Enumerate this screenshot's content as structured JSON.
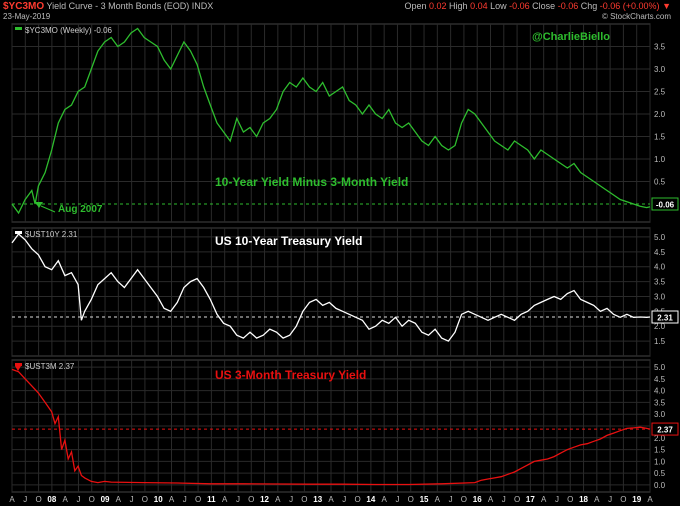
{
  "header": {
    "symbol": "$YC3MO",
    "description": "Yield Curve - 3 Month Bonds (EOD)",
    "exchange": "INDX",
    "date": "23-May-2019",
    "watermark": "© StockCharts.com",
    "quote": {
      "open_label": "Open",
      "open": "0.02",
      "high_label": "High",
      "high": "0.04",
      "low_label": "Low",
      "low": "-0.06",
      "close_label": "Close",
      "close": "-0.06",
      "chg_label": "Chg",
      "chg": "-0.06 (+0.00%)"
    }
  },
  "colors": {
    "green": "#2ebd2e",
    "white": "#ffffff",
    "red": "#e81010",
    "grid": "#2a2a2a",
    "axis": "#bbbbbb",
    "orange": "#f5a623"
  },
  "x_axis": {
    "labels": [
      "A",
      "J",
      "O",
      "08",
      "A",
      "J",
      "O",
      "09",
      "A",
      "J",
      "O",
      "10",
      "A",
      "J",
      "O",
      "11",
      "A",
      "J",
      "O",
      "12",
      "A",
      "J",
      "O",
      "13",
      "A",
      "J",
      "O",
      "14",
      "A",
      "J",
      "O",
      "15",
      "A",
      "J",
      "O",
      "16",
      "A",
      "J",
      "O",
      "17",
      "A",
      "J",
      "O",
      "18",
      "A",
      "J",
      "O",
      "19",
      "A"
    ],
    "year_labels": [
      "08",
      "09",
      "10",
      "11",
      "12",
      "13",
      "14",
      "15",
      "16",
      "17",
      "18",
      "19"
    ]
  },
  "chart_data": [
    {
      "type": "line",
      "legend": "$YC3MO (Weekly) -0.06",
      "annotation": "10-Year Yield Minus 3-Month Yield",
      "author": "@CharlieBiello",
      "event_label": "Aug 2007",
      "last_value": "-0.06",
      "ylim": [
        -0.4,
        4.0
      ],
      "yticks": [
        "0.5",
        "1.0",
        "1.5",
        "2.0",
        "2.5",
        "3.0",
        "3.5"
      ],
      "reference_line": 0,
      "x": [
        0,
        2,
        4,
        6,
        7,
        8,
        10,
        12,
        14,
        16,
        18,
        20,
        22,
        24,
        26,
        28,
        30,
        32,
        34,
        36,
        38,
        40,
        42,
        44,
        46,
        48,
        50,
        52,
        54,
        56,
        58,
        60,
        62,
        64,
        66,
        68,
        70,
        72,
        74,
        76,
        78,
        80,
        82,
        84,
        86,
        88,
        90,
        92,
        94,
        96,
        98,
        100,
        102,
        104,
        106,
        108,
        110,
        112,
        114,
        116,
        118,
        120,
        122,
        124,
        126,
        128,
        130,
        132,
        134,
        136,
        138,
        140,
        142,
        144,
        146,
        148,
        150,
        152,
        154,
        156,
        158,
        160,
        162,
        164,
        166,
        168,
        170,
        172,
        174,
        176,
        178,
        180,
        182,
        184,
        186,
        188,
        190,
        192,
        193
      ],
      "values": [
        0.0,
        -0.2,
        0.1,
        0.3,
        0.0,
        0.4,
        0.7,
        1.2,
        1.8,
        2.1,
        2.2,
        2.5,
        2.6,
        3.0,
        3.4,
        3.6,
        3.7,
        3.5,
        3.6,
        3.8,
        3.9,
        3.7,
        3.6,
        3.5,
        3.2,
        3.0,
        3.3,
        3.6,
        3.4,
        3.1,
        2.6,
        2.2,
        1.8,
        1.6,
        1.4,
        1.9,
        1.6,
        1.7,
        1.5,
        1.8,
        1.9,
        2.1,
        2.5,
        2.7,
        2.6,
        2.8,
        2.6,
        2.5,
        2.7,
        2.4,
        2.5,
        2.6,
        2.3,
        2.2,
        2.0,
        2.2,
        2.0,
        1.9,
        2.1,
        1.8,
        1.7,
        1.8,
        1.6,
        1.4,
        1.3,
        1.5,
        1.3,
        1.2,
        1.3,
        1.8,
        2.1,
        2.0,
        1.8,
        1.6,
        1.4,
        1.3,
        1.2,
        1.4,
        1.3,
        1.2,
        1.0,
        1.2,
        1.1,
        1.0,
        0.9,
        0.8,
        0.9,
        0.7,
        0.6,
        0.5,
        0.4,
        0.3,
        0.2,
        0.1,
        0.05,
        0.0,
        -0.05,
        -0.08,
        -0.06
      ]
    },
    {
      "type": "line",
      "legend": "$UST10Y 2.31",
      "annotation": "US 10-Year Treasury Yield",
      "last_value": "2.31",
      "ylim": [
        1.0,
        5.3
      ],
      "yticks": [
        "1.5",
        "2.0",
        "2.5",
        "3.0",
        "3.5",
        "4.0",
        "4.5",
        "5.0"
      ],
      "reference_line": 2.31,
      "x": [
        0,
        2,
        4,
        6,
        8,
        10,
        12,
        14,
        16,
        18,
        20,
        21,
        22,
        24,
        26,
        28,
        30,
        32,
        34,
        36,
        38,
        40,
        42,
        44,
        46,
        48,
        50,
        52,
        54,
        56,
        58,
        60,
        62,
        64,
        66,
        68,
        70,
        72,
        74,
        76,
        78,
        80,
        82,
        84,
        86,
        88,
        90,
        92,
        94,
        96,
        98,
        100,
        102,
        104,
        106,
        108,
        110,
        112,
        114,
        116,
        118,
        120,
        122,
        124,
        126,
        128,
        130,
        132,
        134,
        136,
        138,
        140,
        142,
        144,
        146,
        148,
        150,
        152,
        154,
        156,
        158,
        160,
        162,
        164,
        166,
        168,
        170,
        172,
        174,
        176,
        178,
        180,
        182,
        184,
        186,
        188,
        190,
        192,
        193
      ],
      "values": [
        4.8,
        5.1,
        4.9,
        4.6,
        4.4,
        4.0,
        3.9,
        4.2,
        3.7,
        3.8,
        3.4,
        2.2,
        2.5,
        2.9,
        3.4,
        3.6,
        3.8,
        3.5,
        3.3,
        3.6,
        3.9,
        3.6,
        3.3,
        3.0,
        2.6,
        2.5,
        2.8,
        3.3,
        3.5,
        3.6,
        3.3,
        2.9,
        2.4,
        2.1,
        2.0,
        1.7,
        1.6,
        1.8,
        1.6,
        1.7,
        1.9,
        1.8,
        1.6,
        1.7,
        2.0,
        2.5,
        2.8,
        2.9,
        2.7,
        2.8,
        2.6,
        2.5,
        2.4,
        2.3,
        2.2,
        1.9,
        2.0,
        2.2,
        2.1,
        2.3,
        2.0,
        2.2,
        2.1,
        1.8,
        1.7,
        1.9,
        1.6,
        1.5,
        1.8,
        2.4,
        2.5,
        2.4,
        2.3,
        2.2,
        2.3,
        2.4,
        2.3,
        2.2,
        2.4,
        2.5,
        2.7,
        2.8,
        2.9,
        3.0,
        2.9,
        3.1,
        3.2,
        2.9,
        2.8,
        2.7,
        2.5,
        2.6,
        2.4,
        2.3,
        2.4,
        2.3,
        2.31,
        2.3,
        2.31
      ]
    },
    {
      "type": "line",
      "legend": "$UST3M 2.37",
      "annotation": "US 3-Month Treasury Yield",
      "last_value": "2.37",
      "ylim": [
        -0.3,
        5.3
      ],
      "yticks": [
        "0.0",
        "0.5",
        "1.0",
        "1.5",
        "2.0",
        "2.5",
        "3.0",
        "3.5",
        "4.0",
        "4.5",
        "5.0"
      ],
      "reference_line": 2.37,
      "x": [
        0,
        2,
        4,
        6,
        8,
        10,
        12,
        13,
        14,
        15,
        16,
        17,
        18,
        19,
        20,
        21,
        22,
        24,
        26,
        28,
        30,
        40,
        50,
        60,
        70,
        80,
        90,
        100,
        110,
        120,
        130,
        140,
        142,
        144,
        146,
        148,
        150,
        152,
        154,
        156,
        158,
        160,
        162,
        164,
        166,
        168,
        170,
        172,
        174,
        176,
        178,
        180,
        182,
        184,
        186,
        188,
        190,
        192,
        193
      ],
      "values": [
        4.9,
        4.8,
        4.5,
        4.2,
        3.9,
        3.5,
        3.1,
        2.6,
        2.9,
        1.5,
        1.9,
        1.1,
        1.4,
        0.6,
        0.8,
        0.4,
        0.3,
        0.15,
        0.1,
        0.15,
        0.12,
        0.1,
        0.08,
        0.05,
        0.05,
        0.04,
        0.03,
        0.03,
        0.02,
        0.02,
        0.05,
        0.1,
        0.2,
        0.25,
        0.3,
        0.35,
        0.45,
        0.55,
        0.7,
        0.85,
        1.0,
        1.05,
        1.1,
        1.2,
        1.35,
        1.5,
        1.6,
        1.7,
        1.75,
        1.85,
        1.95,
        2.1,
        2.2,
        2.3,
        2.4,
        2.42,
        2.45,
        2.4,
        2.37
      ]
    }
  ]
}
